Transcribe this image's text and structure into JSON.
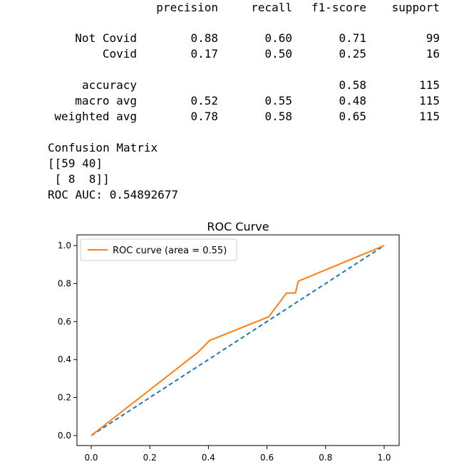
{
  "report": {
    "headers": [
      "precision",
      "recall",
      "f1-score",
      "support"
    ],
    "rows": [
      {
        "label": "Not Covid",
        "precision": "0.88",
        "recall": "0.60",
        "f1": "0.71",
        "support": "99"
      },
      {
        "label": "Covid",
        "precision": "0.17",
        "recall": "0.50",
        "f1": "0.25",
        "support": "16"
      }
    ],
    "summary": [
      {
        "label": "accuracy",
        "precision": "",
        "recall": "",
        "f1": "0.58",
        "support": "115"
      },
      {
        "label": "macro avg",
        "precision": "0.52",
        "recall": "0.55",
        "f1": "0.48",
        "support": "115"
      },
      {
        "label": "weighted avg",
        "precision": "0.78",
        "recall": "0.58",
        "f1": "0.65",
        "support": "115"
      }
    ]
  },
  "confusion": {
    "title": "Confusion Matrix",
    "line1": "[[59 40]",
    "line2": " [ 8  8]]"
  },
  "roc_auc_text": "ROC AUC: 0.54892677",
  "chart_data": {
    "type": "line",
    "title": "ROC Curve",
    "xlabel": "",
    "ylabel": "",
    "xlim": [
      0.0,
      1.0
    ],
    "ylim": [
      0.0,
      1.0
    ],
    "x_ticks": [
      "0.0",
      "0.2",
      "0.4",
      "0.6",
      "0.8",
      "1.0"
    ],
    "y_ticks": [
      "0.0",
      "0.2",
      "0.4",
      "0.6",
      "0.8",
      "1.0"
    ],
    "grid": false,
    "legend_position": "top-left",
    "series": [
      {
        "name": "ROC curve (area = 0.55)",
        "color": "#ff7f0e",
        "style": "solid",
        "x": [
          0.0,
          0.3636,
          0.404,
          0.6061,
          0.6667,
          0.697,
          0.707,
          1.0
        ],
        "y": [
          0.0,
          0.4375,
          0.5,
          0.625,
          0.75,
          0.75,
          0.8125,
          1.0
        ]
      },
      {
        "color": "#1f77b4",
        "style": "dashed",
        "x": [
          0.0,
          1.0
        ],
        "y": [
          0.0,
          1.0
        ]
      }
    ]
  }
}
